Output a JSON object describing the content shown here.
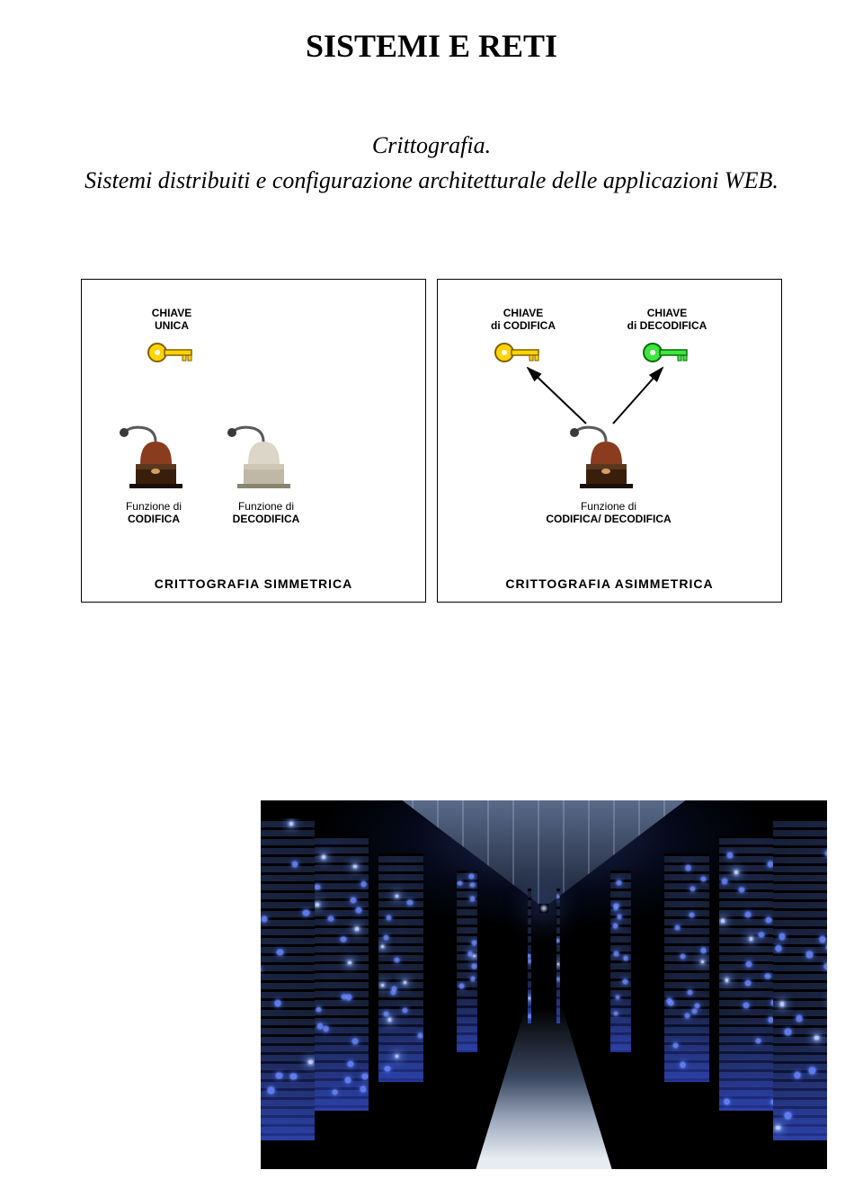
{
  "page": {
    "title": "SISTEMI E RETI",
    "subtitle_line1": "Crittografia.",
    "subtitle_line2": "Sistemi distribuiti e configurazione architetturale delle applicazioni WEB."
  },
  "symmetric": {
    "title": "CRITTOGRAFIA SIMMETRICA",
    "key": {
      "line1": "CHIAVE",
      "line2": "UNICA",
      "color": "#ffd400",
      "outline": "#806000"
    },
    "func_encode": {
      "line1": "Funzione di",
      "line2": "CODIFICA"
    },
    "func_decode": {
      "line1": "Funzione di",
      "line2": "DECODIFICA"
    },
    "grinder1": {
      "body": "#8a3c1e",
      "base": "#3a1e0c",
      "handle": "#5a5a5a"
    },
    "grinder2": {
      "body": "#dcd6c8",
      "base": "#bfb8a6",
      "handle": "#5a5a5a"
    }
  },
  "asymmetric": {
    "title": "CRITTOGRAFIA ASIMMETRICA",
    "key_encode": {
      "line1": "CHIAVE",
      "line2": "di CODIFICA",
      "color": "#ffd400",
      "outline": "#806000"
    },
    "key_decode": {
      "line1": "CHIAVE",
      "line2": "di DECODIFICA",
      "color": "#3ee63e",
      "outline": "#0a6a0a"
    },
    "func": {
      "line1": "Funzione di",
      "line2": "CODIFICA/ DECODIFICA"
    },
    "grinder": {
      "body": "#8a3c1e",
      "base": "#3a1e0c",
      "handle": "#5a5a5a"
    }
  },
  "datacenter": {
    "led_color": "#5a78ff",
    "glow_color": "rgba(60,90,255,0.55)"
  }
}
